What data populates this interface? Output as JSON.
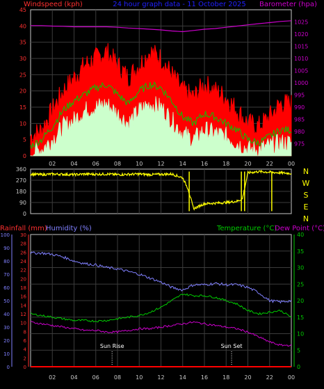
{
  "title": "24 hour graph data - 11 October 2025",
  "colors": {
    "background": "#000000",
    "grid": "#3c3c3c",
    "axis": "#c8c8c8",
    "wind_gust": "#ff0000",
    "wind_avg": "#00cc00",
    "wind_min": "#ccffcc",
    "barometer": "#cc00cc",
    "wind_dir": "#ffff00",
    "rainfall": "#ff0000",
    "humidity": "#8080ff",
    "temperature": "#00cc00",
    "dewpoint": "#cc00cc",
    "left_label_red": "#ff3030",
    "left_label_blue": "#8080ff",
    "right_label_green": "#00cc00",
    "right_label_magenta": "#cc00cc",
    "title_blue": "#2020ff",
    "event_lines": "#ffffff"
  },
  "hour_labels": [
    "02",
    "04",
    "06",
    "08",
    "10",
    "12",
    "14",
    "16",
    "18",
    "20",
    "22",
    "00"
  ],
  "chart_data": [
    {
      "type": "line",
      "panel": "wind_barometer",
      "title": "24 hour graph data - 11 October 2025",
      "left_axis_label": "Windspeed (kph)",
      "right_axis_label": "Barometer (hpa)",
      "left_ylim": [
        0,
        45
      ],
      "left_ticks": [
        0,
        5,
        10,
        15,
        20,
        25,
        30,
        35,
        40,
        45
      ],
      "right_ylim": [
        970,
        1030
      ],
      "right_ticks": [
        975,
        980,
        985,
        990,
        995,
        1000,
        1005,
        1010,
        1015,
        1020,
        1025
      ],
      "x_hours": [
        0,
        1,
        2,
        3,
        4,
        5,
        6,
        7,
        8,
        9,
        10,
        11,
        12,
        13,
        14,
        15,
        16,
        17,
        18,
        19,
        20,
        21,
        22,
        23,
        24
      ],
      "series": [
        {
          "key": "gust",
          "values": [
            6,
            8,
            14,
            20,
            24,
            28,
            30,
            32,
            28,
            24,
            28,
            32,
            30,
            25,
            20,
            18,
            22,
            20,
            18,
            14,
            10,
            9,
            12,
            16,
            16
          ]
        },
        {
          "key": "avg",
          "values": [
            3,
            5,
            9,
            14,
            17,
            19,
            21,
            22,
            19,
            16,
            20,
            22,
            21,
            17,
            12,
            10,
            13,
            12,
            10,
            8,
            5,
            4,
            6,
            8,
            8
          ]
        },
        {
          "key": "min",
          "values": [
            1,
            2,
            5,
            9,
            11,
            14,
            15,
            16,
            13,
            10,
            14,
            16,
            15,
            11,
            7,
            5,
            8,
            7,
            6,
            4,
            2,
            2,
            3,
            4,
            4
          ]
        },
        {
          "key": "barometer",
          "values": [
            1023.5,
            1023.5,
            1023.3,
            1023.2,
            1023.0,
            1023.0,
            1023.0,
            1023.0,
            1022.8,
            1022.5,
            1022.3,
            1022.0,
            1021.7,
            1021.3,
            1021.0,
            1021.5,
            1022.0,
            1022.3,
            1022.8,
            1023.3,
            1023.8,
            1024.3,
            1024.7,
            1025.2,
            1025.5
          ]
        }
      ]
    },
    {
      "type": "scatter",
      "panel": "wind_direction",
      "y_ticks": [
        0,
        90,
        180,
        270,
        360
      ],
      "compass_labels": [
        "N",
        "W",
        "S",
        "E",
        "N"
      ],
      "x_hours": [
        0,
        1,
        2,
        3,
        4,
        5,
        6,
        7,
        8,
        9,
        10,
        11,
        12,
        13,
        14,
        14.5,
        15,
        16,
        17,
        18,
        18.5,
        19,
        19.5,
        20,
        21,
        22,
        23,
        24
      ],
      "series": [
        {
          "key": "direction",
          "values": [
            320,
            315,
            320,
            318,
            315,
            320,
            318,
            320,
            315,
            318,
            320,
            315,
            318,
            320,
            290,
            200,
            40,
            80,
            85,
            90,
            95,
            100,
            120,
            330,
            340,
            335,
            330,
            325
          ]
        }
      ]
    },
    {
      "type": "line",
      "panel": "temperature_humidity",
      "left_label_1": "Rainfall (mm)",
      "left_label_2": "Humidity (%)",
      "right_label_1": "Temperature (°C)",
      "right_label_2": "Dew Point (°C)",
      "humidity_ticks": [
        0,
        10,
        20,
        30,
        40,
        50,
        60,
        70,
        80,
        90,
        100
      ],
      "rainfall_ticks": [
        0,
        2,
        4,
        6,
        8,
        10,
        12,
        14,
        16,
        18,
        20,
        22,
        24,
        26,
        28,
        30
      ],
      "temp_ticks": [
        0,
        5,
        10,
        15,
        20,
        25,
        30,
        35,
        40
      ],
      "temp_ylim": [
        0,
        40
      ],
      "events": [
        {
          "label": "Sun Rise",
          "hour": 7.5
        },
        {
          "label": "Sun Set",
          "hour": 18.5
        }
      ],
      "x_hours": [
        0,
        1,
        2,
        3,
        4,
        5,
        6,
        7,
        8,
        9,
        10,
        11,
        12,
        13,
        14,
        15,
        16,
        17,
        18,
        19,
        20,
        21,
        22,
        23,
        24
      ],
      "series": [
        {
          "key": "humidity",
          "values": [
            86,
            86,
            85,
            83,
            80,
            78,
            77,
            75,
            74,
            72,
            70,
            67,
            64,
            60,
            58,
            62,
            62,
            63,
            62,
            62,
            60,
            56,
            50,
            49,
            50
          ]
        },
        {
          "key": "temperature",
          "values": [
            16,
            15.5,
            15,
            14.5,
            14,
            14,
            13.8,
            14,
            14.5,
            15,
            15.5,
            16.5,
            18,
            20,
            22,
            21.5,
            21.5,
            21,
            20,
            19,
            17,
            16,
            16.5,
            17,
            15
          ]
        },
        {
          "key": "dewpoint",
          "values": [
            13.5,
            13,
            12.5,
            12,
            11.5,
            11,
            11,
            10.5,
            10.5,
            11,
            11.5,
            11.5,
            12,
            12.5,
            13,
            13.5,
            13,
            12.5,
            12,
            11.5,
            10.5,
            9,
            7.5,
            6.5,
            6.5
          ]
        },
        {
          "key": "rainfall",
          "values": [
            0,
            0,
            0,
            0,
            0,
            0,
            0,
            0,
            0,
            0,
            0,
            0,
            0,
            0,
            0,
            0,
            0,
            0,
            0,
            0,
            0,
            0,
            0,
            0,
            0
          ]
        }
      ]
    }
  ]
}
